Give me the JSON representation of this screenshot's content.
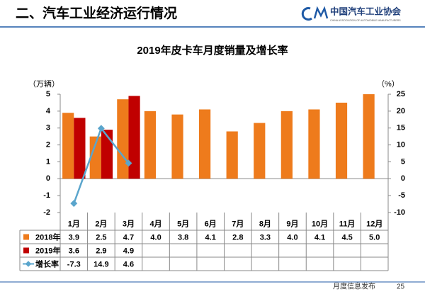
{
  "header": {
    "title": "二、汽车工业经济运行情况",
    "org": "中国汽车工业协会",
    "org_en": "CHINA ASSOCIATION OF AUTOMOBILE MANUFACTURERS"
  },
  "footer": {
    "text": "月度信息发布",
    "page": "25"
  },
  "chart_data": {
    "type": "bar",
    "title": "2019年皮卡车月度销量及增长率",
    "y_label": "（万辆）",
    "y2_label": "（%）",
    "categories": [
      "1月",
      "2月",
      "3月",
      "4月",
      "5月",
      "6月",
      "7月",
      "8月",
      "9月",
      "10月",
      "11月",
      "12月"
    ],
    "series": [
      {
        "name": "2018年",
        "color": "#ee7b1c",
        "values": [
          3.9,
          2.5,
          4.7,
          4.0,
          3.8,
          4.1,
          2.8,
          3.3,
          4.0,
          4.1,
          4.5,
          5.0
        ],
        "value_labels": [
          "3.9",
          "2.5",
          "4.7",
          "4.0",
          "3.8",
          "4.1",
          "2.8",
          "3.3",
          "4.0",
          "4.1",
          "4.5",
          "5.0"
        ]
      },
      {
        "name": "2019年",
        "color": "#c00000",
        "values": [
          3.6,
          2.9,
          4.9,
          null,
          null,
          null,
          null,
          null,
          null,
          null,
          null,
          null
        ]
      },
      {
        "name": "增长率",
        "type": "line",
        "axis": "y2",
        "color": "#5aa5cc",
        "values": [
          -7.3,
          14.9,
          4.6,
          null,
          null,
          null,
          null,
          null,
          null,
          null,
          null,
          null
        ]
      }
    ],
    "ylim": [
      -2,
      5
    ],
    "yticks": [
      -2,
      -1,
      0,
      1,
      2,
      3,
      4,
      5
    ],
    "y2lim": [
      -10,
      25
    ],
    "y2ticks": [
      -10,
      -5,
      0,
      5,
      10,
      15,
      20,
      25
    ]
  }
}
